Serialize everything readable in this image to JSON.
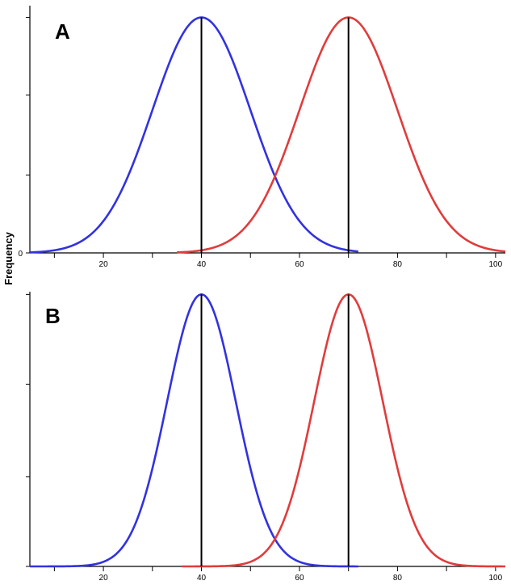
{
  "figure": {
    "ylabel": "Frequency"
  },
  "chart_data": [
    {
      "type": "line",
      "panel_label": "A",
      "xlim": [
        5,
        102
      ],
      "ylim": [
        0,
        1.05
      ],
      "x_ticks": [
        10,
        20,
        30,
        40,
        50,
        60,
        70,
        80,
        90,
        100
      ],
      "x_tick_labels": [
        "20",
        "40",
        "60",
        "80",
        "100"
      ],
      "y_ticks": [
        0,
        0.33,
        0.67,
        1.0
      ],
      "y_tick_labels": [
        "0"
      ],
      "series": [
        {
          "color": "#3232e0",
          "mean": 40,
          "sd": 10,
          "x_range": [
            5,
            72
          ]
        },
        {
          "color": "#e03c3c",
          "mean": 70,
          "sd": 10,
          "x_range": [
            35,
            102
          ]
        }
      ],
      "mean_lines": [
        40,
        70
      ]
    },
    {
      "type": "line",
      "panel_label": "B",
      "xlim": [
        5,
        102
      ],
      "ylim": [
        0,
        1.01
      ],
      "x_ticks": [
        10,
        20,
        30,
        40,
        50,
        60,
        70,
        80,
        90,
        100
      ],
      "x_tick_labels": [
        "20",
        "40",
        "60",
        "80",
        "100"
      ],
      "y_ticks": [
        0,
        0.33,
        0.67,
        1.0
      ],
      "y_tick_labels": [],
      "series": [
        {
          "color": "#3232e0",
          "mean": 40,
          "sd": 7,
          "x_range": [
            5,
            72
          ]
        },
        {
          "color": "#e03c3c",
          "mean": 70,
          "sd": 7,
          "x_range": [
            36,
            102
          ]
        }
      ],
      "mean_lines": [
        40,
        70
      ]
    }
  ]
}
